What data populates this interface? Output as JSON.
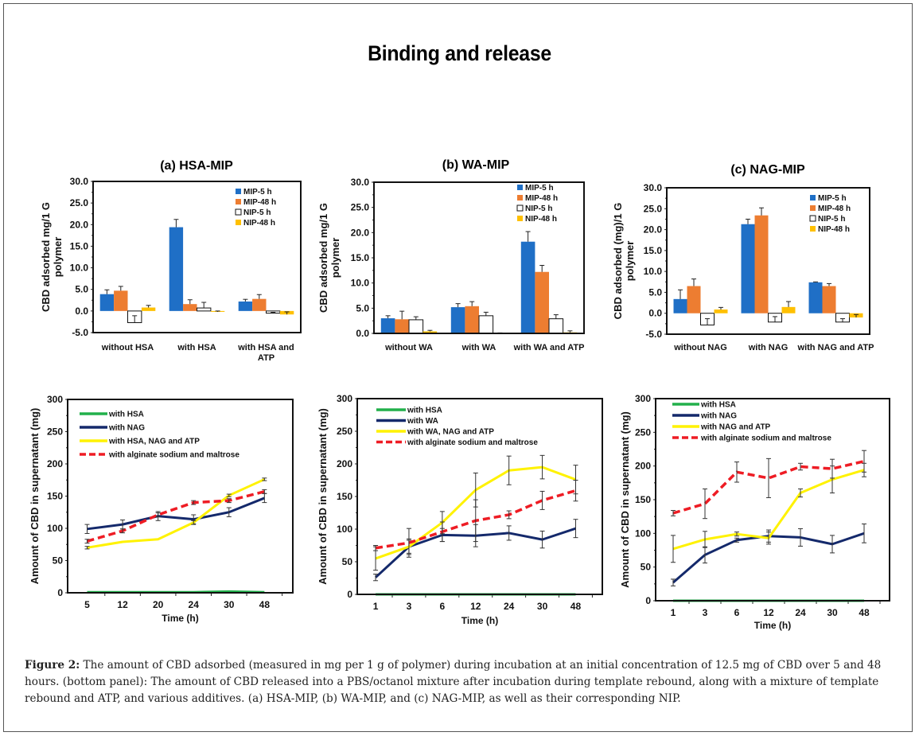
{
  "figure": {
    "title": "Binding and release",
    "caption_label": "Figure 2:",
    "caption_text": " The amount of CBD adsorbed (measured in mg per 1 g of polymer) during incubation at an initial concentration of 12.5 mg of CBD over 5 and 48 hours. (bottom panel): The amount of CBD released into a PBS/octanol mixture after incubation during template rebound, along with a mixture of template rebound and ATP, and various additives.  (a) HSA-MIP, (b) WA-MIP, and (c) NAG-MIP, as well as their corresponding NIP."
  },
  "colors": {
    "MIP-5 h": "#1f6fc6",
    "MIP-48 h": "#ed7d31",
    "NIP-5 h": "#ffffff",
    "NIP-48 h": "#ffc000",
    "green": "#22b04b",
    "navy": "#14296b",
    "yellow": "#fff200",
    "red": "#ee1c24"
  },
  "chart_data": [
    {
      "id": "bar-a",
      "type": "bar",
      "title": "(a) HSA-MIP",
      "ylabel_lines": [
        "CBD adsorbed mg/1 G",
        "polymer"
      ],
      "xlabel": "",
      "ylim": [
        -5,
        30
      ],
      "yticks": [
        "-5.0",
        "0.0",
        "5.0",
        "10.0",
        "15.0",
        "20.0",
        "25.0",
        "30.0"
      ],
      "ytick_values": [
        -5,
        0,
        5,
        10,
        15,
        20,
        25,
        30
      ],
      "categories": [
        [
          "without HSA"
        ],
        [
          "with HSA"
        ],
        [
          "with HSA and",
          "ATP"
        ]
      ],
      "legend": "top-right",
      "series": [
        {
          "name": "MIP-5 h",
          "values": [
            3.9,
            19.4,
            2.2
          ],
          "errors": [
            1.0,
            1.8,
            0.5
          ]
        },
        {
          "name": "MIP-48 h",
          "values": [
            4.7,
            1.6,
            2.8
          ],
          "errors": [
            1.0,
            1.0,
            1.0
          ]
        },
        {
          "name": "NIP-5 h",
          "values": [
            -2.7,
            0.7,
            -0.5
          ],
          "errors": [
            1.6,
            1.3,
            0.2
          ]
        },
        {
          "name": "NIP-48 h",
          "values": [
            0.8,
            -0.2,
            -0.8
          ],
          "errors": [
            0.5,
            0.2,
            0.6
          ]
        }
      ]
    },
    {
      "id": "bar-b",
      "type": "bar",
      "title": "(b) WA-MIP",
      "ylabel_lines": [
        "CBD adsorbed mg/1 G",
        "polymer"
      ],
      "xlabel": "",
      "ylim": [
        0,
        30
      ],
      "yticks": [
        "0.0",
        "5.0",
        "10.0",
        "15.0",
        "20.0",
        "25.0",
        "30.0"
      ],
      "ytick_values": [
        0,
        5,
        10,
        15,
        20,
        25,
        30
      ],
      "categories": [
        [
          "without WA"
        ],
        [
          "with WA"
        ],
        [
          "with WA and ATP"
        ]
      ],
      "legend": "top-right",
      "series": [
        {
          "name": "MIP-5 h",
          "values": [
            3.0,
            5.2,
            18.2
          ],
          "errors": [
            0.5,
            0.7,
            2.0
          ]
        },
        {
          "name": "MIP-48 h",
          "values": [
            2.8,
            5.4,
            12.2
          ],
          "errors": [
            1.6,
            0.9,
            1.3
          ]
        },
        {
          "name": "NIP-5 h",
          "values": [
            2.7,
            3.5,
            2.9
          ],
          "errors": [
            0.6,
            0.7,
            0.8
          ]
        },
        {
          "name": "NIP-48 h",
          "values": [
            0.4,
            0.0,
            0.2
          ],
          "errors": [
            0.2,
            0.1,
            0.3
          ]
        }
      ]
    },
    {
      "id": "bar-c",
      "type": "bar",
      "title": "(c) NAG-MIP",
      "ylabel_lines": [
        "CBD adsorbed (mg)/1 G",
        "polymer"
      ],
      "xlabel": "",
      "ylim": [
        -5,
        30
      ],
      "yticks": [
        "-5.0",
        "0.0",
        "5.0",
        "10.0",
        "15.0",
        "20.0",
        "25.0",
        "30.0"
      ],
      "ytick_values": [
        -5,
        0,
        5,
        10,
        15,
        20,
        25,
        30
      ],
      "categories": [
        [
          "without NAG"
        ],
        [
          "with NAG"
        ],
        [
          "with NAG and ATP"
        ]
      ],
      "legend": "top-right",
      "series": [
        {
          "name": "MIP-5 h",
          "values": [
            3.4,
            21.3,
            7.4
          ],
          "errors": [
            2.2,
            1.2,
            0.1
          ]
        },
        {
          "name": "MIP-48 h",
          "values": [
            6.5,
            23.4,
            6.5
          ],
          "errors": [
            1.7,
            1.8,
            0.6
          ]
        },
        {
          "name": "NIP-5 h",
          "values": [
            -2.8,
            -2.1,
            -2.1
          ],
          "errors": [
            1.5,
            1.3,
            0.8
          ]
        },
        {
          "name": "NIP-48 h",
          "values": [
            0.9,
            1.5,
            -1.0
          ],
          "errors": [
            0.5,
            1.3,
            0.7
          ]
        }
      ]
    },
    {
      "id": "line-a",
      "type": "line",
      "title": "",
      "ylabel": "Amount of CBD in supernatant (mg)",
      "xlabel": "Time (h)",
      "x": [
        "5",
        "12",
        "20",
        "24",
        "30",
        "48"
      ],
      "ylim": [
        0,
        300
      ],
      "yticks": [
        "0",
        "50",
        "100",
        "150",
        "200",
        "250",
        "300"
      ],
      "ytick_values": [
        0,
        50,
        100,
        150,
        200,
        250,
        300
      ],
      "legend": "top-left",
      "series": [
        {
          "name": "with HSA",
          "color": "green",
          "dashed": false,
          "values": [
            1,
            1,
            1,
            1,
            2,
            1
          ],
          "errors": [
            0,
            0,
            0,
            0,
            0,
            0
          ]
        },
        {
          "name": "with NAG",
          "color": "navy",
          "dashed": false,
          "values": [
            99,
            106,
            119,
            114,
            125,
            147
          ],
          "errors": [
            7,
            7,
            7,
            7,
            7,
            7
          ]
        },
        {
          "name": "with HSA, NAG and ATP",
          "color": "yellow",
          "dashed": false,
          "values": [
            70,
            79,
            83,
            109,
            151,
            176
          ],
          "errors": [
            2,
            0,
            0,
            3,
            2,
            2
          ]
        },
        {
          "name": "with alginate sodium and maltrose",
          "color": "red",
          "dashed": true,
          "values": [
            80,
            96,
            121,
            140,
            143,
            157
          ],
          "errors": [
            3,
            3,
            3,
            3,
            3,
            3
          ]
        }
      ]
    },
    {
      "id": "line-b",
      "type": "line",
      "title": "",
      "ylabel": "Amount of CBD in supernatant (mg)",
      "xlabel": "Time (h)",
      "x": [
        "1",
        "3",
        "6",
        "12",
        "24",
        "30",
        "48"
      ],
      "ylim": [
        0,
        300
      ],
      "yticks": [
        "0",
        "50",
        "100",
        "150",
        "200",
        "250",
        "300"
      ],
      "ytick_values": [
        0,
        50,
        100,
        150,
        200,
        250,
        300
      ],
      "legend": "top-left",
      "series": [
        {
          "name": "with HSA",
          "color": "green",
          "dashed": false,
          "values": [
            0,
            0,
            0,
            0,
            0,
            0,
            0
          ],
          "errors": [
            0,
            0,
            0,
            0,
            0,
            0,
            0
          ]
        },
        {
          "name": "with WA",
          "color": "navy",
          "dashed": false,
          "values": [
            26,
            73,
            91,
            90,
            94,
            84,
            101
          ],
          "errors": [
            5,
            10,
            10,
            17,
            11,
            13,
            14
          ]
        },
        {
          "name": "with WA, NAG and ATP",
          "color": "yellow",
          "dashed": false,
          "values": [
            55,
            73,
            110,
            160,
            190,
            195,
            176
          ],
          "errors": [
            18,
            12,
            17,
            26,
            22,
            18,
            22
          ]
        },
        {
          "name": "with alginate sodium and maltrose",
          "color": "red",
          "dashed": true,
          "values": [
            71,
            79,
            96,
            113,
            122,
            144,
            159
          ],
          "errors": [
            4,
            22,
            15,
            32,
            6,
            14,
            16
          ]
        }
      ]
    },
    {
      "id": "line-c",
      "type": "line",
      "title": "",
      "ylabel": "Amount of CBD in supernatant (mg)",
      "xlabel": "Time (h)",
      "x": [
        "1",
        "3",
        "6",
        "12",
        "24",
        "30",
        "48"
      ],
      "ylim": [
        0,
        300
      ],
      "yticks": [
        "0",
        "50",
        "100",
        "150",
        "200",
        "250",
        "300"
      ],
      "ytick_values": [
        0,
        50,
        100,
        150,
        200,
        250,
        300
      ],
      "legend": "top-left",
      "series": [
        {
          "name": "with HSA",
          "color": "green",
          "dashed": false,
          "values": [
            0,
            0,
            0,
            0,
            0,
            0,
            0
          ],
          "errors": [
            0,
            0,
            0,
            0,
            0,
            0,
            0
          ]
        },
        {
          "name": "with NAG",
          "color": "navy",
          "dashed": false,
          "values": [
            27,
            68,
            90,
            96,
            94,
            84,
            100
          ],
          "errors": [
            5,
            12,
            3,
            9,
            13,
            13,
            14
          ]
        },
        {
          "name": "with NAG and ATP",
          "color": "yellow",
          "dashed": false,
          "values": [
            77,
            91,
            99,
            93,
            160,
            180,
            194
          ],
          "errors": [
            20,
            12,
            3,
            9,
            6,
            20,
            10
          ]
        },
        {
          "name": "with alginate sodium and maltrose",
          "color": "red",
          "dashed": true,
          "values": [
            130,
            144,
            191,
            182,
            199,
            196,
            207
          ],
          "errors": [
            4,
            22,
            15,
            29,
            5,
            14,
            16
          ]
        }
      ]
    }
  ]
}
